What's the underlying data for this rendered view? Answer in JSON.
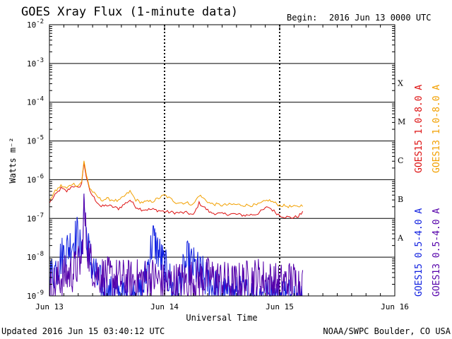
{
  "header": {
    "title": "GOES Xray Flux (1-minute data)",
    "begin_label": "Begin:",
    "begin_value": "2016 Jun 13 0000 UTC"
  },
  "footer": {
    "updated": "Updated 2016 Jun 15 03:40:12 UTC",
    "credit": "NOAA/SWPC Boulder, CO USA"
  },
  "chart_data": {
    "type": "line",
    "title": "GOES Xray Flux (1-minute data)",
    "xlabel": "Universal Time",
    "ylabel": "Watts m⁻²",
    "y_scale": "log",
    "xlim_days": [
      0,
      3
    ],
    "ylim": [
      1e-09,
      0.01
    ],
    "x_ticks": [
      {
        "day": 0,
        "label": "Jun 13"
      },
      {
        "day": 1,
        "label": "Jun 14"
      },
      {
        "day": 2,
        "label": "Jun 15"
      },
      {
        "day": 3,
        "label": "Jun 16"
      }
    ],
    "y_ticks": [
      {
        "exp": -9,
        "label": "10",
        "sup": "-9"
      },
      {
        "exp": -8,
        "label": "10",
        "sup": "-8"
      },
      {
        "exp": -7,
        "label": "10",
        "sup": "-7"
      },
      {
        "exp": -6,
        "label": "10",
        "sup": "-6"
      },
      {
        "exp": -5,
        "label": "10",
        "sup": "-5"
      },
      {
        "exp": -4,
        "label": "10",
        "sup": "-4"
      },
      {
        "exp": -3,
        "label": "10",
        "sup": "-3"
      },
      {
        "exp": -2,
        "label": "10",
        "sup": "-2"
      }
    ],
    "flare_classes": [
      "A",
      "B",
      "C",
      "M",
      "X"
    ],
    "grid": true,
    "series": [
      {
        "name": "GOES15 1.0-8.0 A",
        "color": "#dd1111",
        "x": [
          0.0,
          0.05,
          0.1,
          0.15,
          0.2,
          0.25,
          0.28,
          0.3,
          0.32,
          0.35,
          0.4,
          0.45,
          0.5,
          0.6,
          0.7,
          0.75,
          0.8,
          0.9,
          1.0,
          1.1,
          1.2,
          1.25,
          1.3,
          1.4,
          1.5,
          1.6,
          1.7,
          1.8,
          1.9,
          2.0,
          2.05,
          2.1,
          2.15,
          2.2
        ],
        "y": [
          2.5e-07,
          4e-07,
          6e-07,
          5e-07,
          7e-07,
          6e-07,
          8e-07,
          2.8e-06,
          1.2e-06,
          5e-07,
          3e-07,
          2e-07,
          2.2e-07,
          1.8e-07,
          3e-07,
          2e-07,
          1.7e-07,
          1.7e-07,
          1.5e-07,
          1.4e-07,
          1.4e-07,
          1.2e-07,
          2.5e-07,
          1.4e-07,
          1.3e-07,
          1.3e-07,
          1.2e-07,
          1.3e-07,
          2e-07,
          1.2e-07,
          1.1e-07,
          1.05e-07,
          1.1e-07,
          1.4e-07
        ]
      },
      {
        "name": "GOES13 1.0-8.0 A",
        "color": "#f2a000",
        "x": [
          0.0,
          0.05,
          0.1,
          0.15,
          0.2,
          0.25,
          0.28,
          0.3,
          0.32,
          0.35,
          0.4,
          0.45,
          0.5,
          0.6,
          0.7,
          0.75,
          0.8,
          0.9,
          1.0,
          1.1,
          1.2,
          1.25,
          1.3,
          1.4,
          1.5,
          1.6,
          1.7,
          1.8,
          1.9,
          2.0,
          2.05,
          2.1,
          2.15,
          2.2
        ],
        "y": [
          3e-07,
          5e-07,
          7e-07,
          6e-07,
          8e-07,
          7e-07,
          9e-07,
          3e-06,
          1.4e-06,
          6e-07,
          4e-07,
          3e-07,
          3.2e-07,
          2.8e-07,
          5e-07,
          3e-07,
          2.6e-07,
          2.8e-07,
          4e-07,
          2.6e-07,
          2.5e-07,
          2.3e-07,
          4e-07,
          2.4e-07,
          2.2e-07,
          2.3e-07,
          2.2e-07,
          2.2e-07,
          3e-07,
          2.2e-07,
          2.1e-07,
          2e-07,
          2e-07,
          2.2e-07
        ]
      },
      {
        "name": "GOES15 0.5-4.0 A",
        "color": "#1020e0",
        "x": [
          0.0,
          0.05,
          0.1,
          0.2,
          0.25,
          0.28,
          0.3,
          0.32,
          0.35,
          0.4,
          0.5,
          0.8,
          0.9,
          1.1,
          1.2,
          1.5,
          2.0,
          2.2
        ],
        "y": [
          3e-09,
          5e-09,
          1e-08,
          2.5e-08,
          4e-08,
          8e-09,
          3e-07,
          4e-08,
          1e-08,
          3e-09,
          1e-09,
          1e-09,
          3e-08,
          1e-09,
          8e-09,
          1e-09,
          1e-09,
          1e-09
        ]
      },
      {
        "name": "GOES13 0.5-4.0 A",
        "color": "#5500aa",
        "x": [
          0.0,
          0.1,
          0.2,
          0.28,
          0.3,
          0.32,
          0.35,
          0.4,
          0.5,
          0.7,
          0.9,
          1.0,
          1.2,
          1.4,
          1.6,
          1.8,
          2.0,
          2.1,
          2.2
        ],
        "y": [
          1.5e-09,
          3e-09,
          4e-09,
          8e-09,
          2e-07,
          3e-08,
          9e-09,
          4e-09,
          3e-09,
          2.5e-09,
          3e-09,
          2e-09,
          2.5e-09,
          3e-09,
          2e-09,
          3e-09,
          2e-09,
          2.5e-09,
          2e-09
        ]
      }
    ]
  }
}
